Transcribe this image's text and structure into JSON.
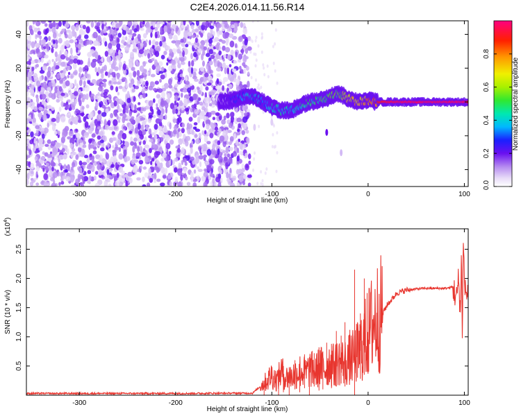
{
  "title": "C2E4.2026.014.11.56.R14",
  "chart_data": [
    {
      "type": "heatmap",
      "name": "spectrogram",
      "xlabel": "Height of straight line (km)",
      "ylabel": "Frequency (Hz)",
      "xlim": [
        -355,
        104
      ],
      "ylim": [
        -50,
        48
      ],
      "xticks": [
        -300,
        -200,
        -100,
        0,
        100
      ],
      "xtick_labels": [
        "-300",
        "-200",
        "-100",
        "0",
        "100"
      ],
      "yticks": [
        -40,
        -20,
        0,
        20,
        40
      ],
      "ytick_labels": [
        "-40",
        "-20",
        "0",
        "20",
        "40"
      ],
      "noise_region_x": [
        -355,
        -123
      ],
      "signal_track": {
        "x": [
          -155,
          -140,
          -125,
          -115,
          -100,
          -90,
          -80,
          -70,
          -60,
          -50,
          -40,
          -30,
          -20,
          -10,
          0,
          10,
          20,
          40,
          60,
          80,
          100,
          104
        ],
        "freq": [
          0,
          1,
          4,
          2,
          -3,
          -5,
          -5,
          -2,
          0,
          1,
          3,
          5,
          2,
          0,
          1,
          0,
          0,
          0,
          0,
          0,
          0,
          0
        ],
        "amplitude": [
          0.2,
          0.3,
          0.45,
          0.4,
          0.45,
          0.5,
          0.45,
          0.5,
          0.55,
          0.55,
          0.6,
          0.6,
          0.75,
          0.8,
          0.85,
          0.9,
          0.95,
          0.97,
          0.97,
          0.97,
          0.97,
          0.97
        ]
      },
      "colorbar": {
        "label": "Normalized spectral amplitude",
        "range": [
          0,
          1
        ],
        "ticks": [
          0.0,
          0.2,
          0.4,
          0.6,
          0.8
        ],
        "tick_labels": [
          "0.0",
          "0.2",
          "0.4",
          "0.6",
          "0.8"
        ]
      }
    },
    {
      "type": "line",
      "name": "snr",
      "xlabel": "Height of straight line (km)",
      "ylabel": "SNR (10 * v/v)",
      "scale_label": "(x10",
      "scale_exponent": "4",
      "scale_close": ")",
      "xlim": [
        -355,
        104
      ],
      "ylim": [
        0,
        28500
      ],
      "xticks": [
        -300,
        -200,
        -100,
        0,
        100
      ],
      "xtick_labels": [
        "-300",
        "-200",
        "-100",
        "0",
        "100"
      ],
      "yticks": [
        5000,
        10000,
        15000,
        20000,
        25000
      ],
      "ytick_labels": [
        "0.5",
        "1.0",
        "1.5",
        "2.0",
        "2.5"
      ],
      "color": "#e8362f",
      "series": [
        {
          "name": "SNR",
          "x": [
            -355,
            -200,
            -120,
            -112,
            -105,
            -100,
            -95,
            -90,
            -85,
            -80,
            -75,
            -70,
            -65,
            -60,
            -55,
            -50,
            -45,
            -40,
            -35,
            -30,
            -25,
            -20,
            -15,
            -10,
            -5,
            0,
            5,
            10,
            15,
            20,
            25,
            30,
            40,
            50,
            60,
            70,
            80,
            85,
            88,
            90,
            92,
            94,
            96,
            97,
            98,
            99,
            100,
            102,
            104
          ],
          "y": [
            300,
            300,
            350,
            1500,
            2500,
            3500,
            2500,
            4000,
            3000,
            3200,
            3800,
            4200,
            3800,
            4500,
            4000,
            5000,
            4500,
            5500,
            5000,
            6000,
            5500,
            6000,
            6500,
            7500,
            9000,
            10500,
            12500,
            13500,
            14000,
            15500,
            16500,
            17500,
            18000,
            18200,
            18300,
            18300,
            18300,
            18400,
            18600,
            17500,
            16500,
            20000,
            14000,
            24000,
            10000,
            28500,
            19000,
            17500,
            17200
          ]
        }
      ],
      "spikes": {
        "x": [
          -108,
          -93,
          -88,
          -82,
          -76,
          -71,
          -66,
          -61,
          -56,
          -51,
          -47,
          -43,
          -38,
          -33,
          -28,
          -24,
          -19,
          -14,
          -11,
          -8,
          -4,
          -1
        ],
        "top": [
          2500,
          4500,
          5000,
          4800,
          6000,
          5200,
          7000,
          6500,
          7200,
          8200,
          7500,
          9000,
          8800,
          11000,
          10200,
          12500,
          11200,
          21500,
          12500,
          14000,
          20000,
          17500
        ],
        "bottom": [
          0,
          0,
          500,
          0,
          1000,
          500,
          1200,
          0,
          1500,
          800,
          1000,
          1800,
          1200,
          1500,
          2000,
          1500,
          2500,
          0,
          3000,
          2800,
          3500,
          4000
        ]
      }
    }
  ]
}
